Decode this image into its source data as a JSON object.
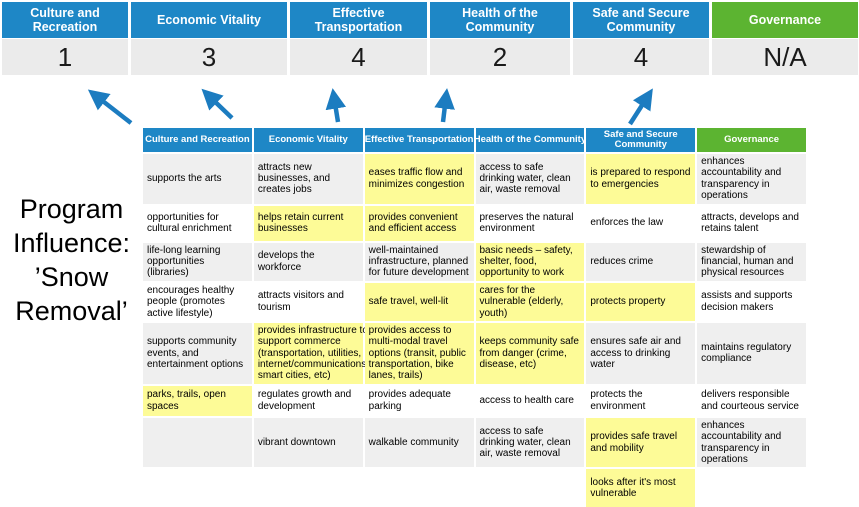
{
  "title": "Program\nInfluence:\n’Snow\nRemoval’",
  "colors": {
    "header_blue": "#1E87C6",
    "header_green": "#5CB431",
    "highlight_yellow": "#FDFB97",
    "banded_row_gray": "#EFEFEF",
    "score_band_gray": "#EBEBEB",
    "arrow_blue": "#1C7CC0"
  },
  "priorities": [
    {
      "label": "Culture and Recreation",
      "score": "1",
      "theme": "blue"
    },
    {
      "label": "Economic Vitality",
      "score": "3",
      "theme": "blue"
    },
    {
      "label": "Effective Transportation",
      "score": "4",
      "theme": "blue"
    },
    {
      "label": "Health of the Community",
      "score": "2",
      "theme": "blue"
    },
    {
      "label": "Safe and Secure Community",
      "score": "4",
      "theme": "blue"
    },
    {
      "label": "Governance",
      "score": "N/A",
      "theme": "green"
    }
  ],
  "matrix": {
    "headers": [
      {
        "label": "Culture and Recreation",
        "theme": "blue"
      },
      {
        "label": "Economic Vitality",
        "theme": "blue"
      },
      {
        "label": "Effective Transportation",
        "theme": "blue"
      },
      {
        "label": "Health of the Community",
        "theme": "blue"
      },
      {
        "label": "Safe and Secure Community",
        "theme": "blue"
      },
      {
        "label": "Governance",
        "theme": "green"
      }
    ],
    "rows": [
      {
        "cells": [
          {
            "text": "supports the arts",
            "highlight": false
          },
          {
            "text": "attracts new businesses, and creates jobs",
            "highlight": false
          },
          {
            "text": "eases traffic flow and minimizes congestion",
            "highlight": true
          },
          {
            "text": "access to safe drinking water, clean air, waste removal",
            "highlight": false
          },
          {
            "text": "is prepared to respond to emergencies",
            "highlight": true
          },
          {
            "text": "enhances accountability and transparency in operations",
            "highlight": false
          }
        ]
      },
      {
        "cells": [
          {
            "text": "opportunities for cultural enrichment",
            "highlight": false
          },
          {
            "text": "helps retain current businesses",
            "highlight": true
          },
          {
            "text": "provides convenient and efficient access",
            "highlight": true
          },
          {
            "text": "preserves the natural environment",
            "highlight": false
          },
          {
            "text": "enforces the law",
            "highlight": false
          },
          {
            "text": "attracts, develops and retains talent",
            "highlight": false
          }
        ]
      },
      {
        "cells": [
          {
            "text": "life-long learning opportunities (libraries)",
            "highlight": false
          },
          {
            "text": "develops the workforce",
            "highlight": false
          },
          {
            "text": "well-maintained infrastructure, planned for future development",
            "highlight": false
          },
          {
            "text": "basic needs – safety, shelter, food, opportunity to work",
            "highlight": true
          },
          {
            "text": "reduces crime",
            "highlight": false
          },
          {
            "text": "stewardship of financial, human and physical resources",
            "highlight": false
          }
        ]
      },
      {
        "cells": [
          {
            "text": "encourages healthy people (promotes active lifestyle)",
            "highlight": false
          },
          {
            "text": "attracts visitors and tourism",
            "highlight": false
          },
          {
            "text": "safe travel, well-lit",
            "highlight": true
          },
          {
            "text": "cares for the vulnerable (elderly, youth)",
            "highlight": true
          },
          {
            "text": "protects property",
            "highlight": true
          },
          {
            "text": "assists and supports decision makers",
            "highlight": false
          }
        ]
      },
      {
        "cells": [
          {
            "text": "supports community events, and entertainment options",
            "highlight": false
          },
          {
            "text": "provides infrastructure to support commerce (transportation, utilities, internet/communications, smart cities, etc)",
            "highlight": true
          },
          {
            "text": "provides access to multi-modal travel options (transit, public transportation, bike lanes, trails)",
            "highlight": true
          },
          {
            "text": "keeps community safe from danger (crime, disease, etc)",
            "highlight": true
          },
          {
            "text": "ensures safe air and access to drinking water",
            "highlight": false
          },
          {
            "text": "maintains regulatory compliance",
            "highlight": false
          }
        ]
      },
      {
        "cells": [
          {
            "text": "parks, trails, open spaces",
            "highlight": true
          },
          {
            "text": "regulates growth and development",
            "highlight": false
          },
          {
            "text": "provides adequate parking",
            "highlight": false
          },
          {
            "text": "access to health care",
            "highlight": false
          },
          {
            "text": "protects the environment",
            "highlight": false
          },
          {
            "text": "delivers responsible and courteous service",
            "highlight": false
          }
        ]
      },
      {
        "cells": [
          {
            "text": "",
            "highlight": false
          },
          {
            "text": "vibrant downtown",
            "highlight": false
          },
          {
            "text": "walkable community",
            "highlight": false
          },
          {
            "text": "access to safe drinking water, clean air, waste removal",
            "highlight": false
          },
          {
            "text": "provides safe travel and mobility",
            "highlight": true
          },
          {
            "text": "enhances accountability and transparency in operations",
            "highlight": false
          }
        ]
      },
      {
        "cells": [
          {
            "text": "",
            "highlight": false
          },
          {
            "text": "",
            "highlight": false
          },
          {
            "text": "",
            "highlight": false
          },
          {
            "text": "",
            "highlight": false
          },
          {
            "text": "looks after it's most vulnerable",
            "highlight": true
          },
          {
            "text": "",
            "highlight": false
          }
        ]
      }
    ]
  }
}
